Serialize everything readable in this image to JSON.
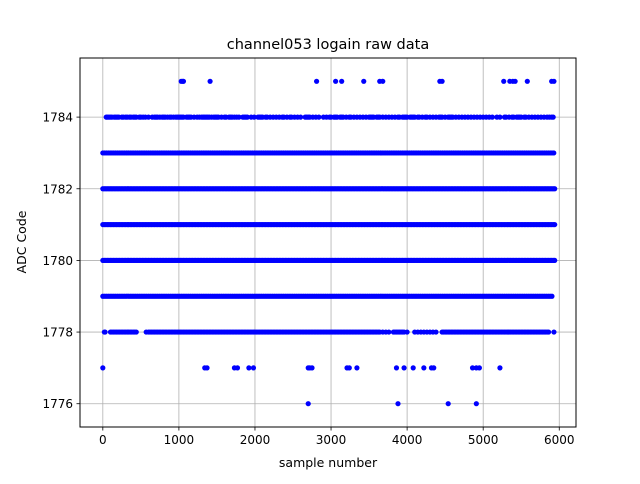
{
  "chart_data": {
    "type": "scatter",
    "title": "channel053 logain raw data",
    "xlabel": "sample number",
    "ylabel": "ADC Code",
    "xlim": [
      -300,
      6220
    ],
    "ylim": [
      1775.35,
      1785.65
    ],
    "xticks": [
      0,
      1000,
      2000,
      3000,
      4000,
      5000,
      6000
    ],
    "xtick_labels": [
      "0",
      "1000",
      "2000",
      "3000",
      "4000",
      "5000",
      "6000"
    ],
    "yticks": [
      1776,
      1778,
      1780,
      1782,
      1784
    ],
    "ytick_labels": [
      "1776",
      "1778",
      "1780",
      "1782",
      "1784"
    ],
    "grid": true,
    "marker_color": "#0000ff",
    "series": [
      {
        "values": [
          {
            "y": 1779,
            "x_from": 0,
            "x_to": 5920,
            "step": 24
          },
          {
            "y": 1780,
            "x_from": 0,
            "x_to": 5940,
            "step": 20
          },
          {
            "y": 1781,
            "x_from": 0,
            "x_to": 5940,
            "step": 20
          },
          {
            "y": 1782,
            "x_from": 0,
            "x_to": 5940,
            "step": 20
          },
          {
            "y": 1783,
            "x_from": 0,
            "x_to": 5940,
            "step": 24
          },
          {
            "y": 1784,
            "x": [
              45,
              60,
              80,
              100,
              120,
              150,
              170,
              190,
              210,
              250,
              270,
              300,
              320,
              350,
              370,
              400,
              420,
              440,
              480,
              500,
              530,
              560,
              600,
              650,
              680,
              700,
              720,
              750,
              780,
              800,
              820,
              850,
              880,
              900,
              930,
              960,
              980,
              1000,
              1020,
              1040,
              1060,
              1100,
              1120,
              1140,
              1160,
              1200,
              1240,
              1270,
              1300,
              1320,
              1340,
              1360,
              1380,
              1400,
              1430,
              1460,
              1480,
              1500,
              1520,
              1560,
              1600,
              1620,
              1660,
              1680,
              1700,
              1730,
              1760,
              1790,
              1840,
              1860,
              1880,
              1900,
              1950,
              1990,
              2040,
              2060,
              2080,
              2100,
              2140,
              2160,
              2200,
              2240,
              2280,
              2320,
              2360,
              2380,
              2420,
              2460,
              2480,
              2520,
              2560,
              2600,
              2660,
              2680,
              2700,
              2720,
              2760,
              2800,
              2840,
              2900,
              2940,
              2980,
              3000,
              3040,
              3060,
              3080,
              3120,
              3140,
              3160,
              3200,
              3240,
              3260,
              3300,
              3340,
              3380,
              3420,
              3460,
              3500,
              3520,
              3540,
              3560,
              3600,
              3620,
              3640,
              3680,
              3720,
              3760,
              3800,
              3840,
              3880,
              3900,
              3940,
              3960,
              3980,
              4000,
              4040,
              4060,
              4080,
              4100,
              4140,
              4160,
              4200,
              4240,
              4260,
              4300,
              4340,
              4380,
              4420,
              4440,
              4460,
              4500,
              4540,
              4560,
              4580,
              4600,
              4640,
              4680,
              4720,
              4760,
              4800,
              4840,
              4880,
              4920,
              4960,
              5000,
              5040,
              5080,
              5120,
              5180,
              5220,
              5280,
              5300,
              5340,
              5380,
              5400,
              5440,
              5460,
              5480,
              5500,
              5540,
              5560,
              5600,
              5640,
              5680,
              5720,
              5760,
              5800,
              5840,
              5870,
              5900,
              5920
            ]
          },
          {
            "y": 1778,
            "x": [
              20,
              30,
              100,
              120,
              140,
              160,
              180,
              200,
              220,
              240,
              260,
              280,
              300,
              320,
              340,
              360,
              380,
              400,
              420,
              440,
              570,
              600,
              620,
              640,
              660,
              680,
              700,
              720,
              740,
              760,
              780,
              800,
              820,
              840,
              860,
              880,
              900,
              920,
              940,
              960,
              980,
              1000,
              1020,
              1040,
              1060,
              1080,
              1100,
              1120,
              1140,
              1160,
              1180,
              1200,
              1220,
              1240,
              1260,
              1280,
              1300,
              1320,
              1340,
              1360,
              1380,
              1400,
              1420,
              1440,
              1460,
              1480,
              1500,
              1520,
              1540,
              1560,
              1580,
              1600,
              1620,
              1640,
              1660,
              1680,
              1700,
              1720,
              1740,
              1760,
              1780,
              1800,
              1820,
              1840,
              1860,
              1880,
              1900,
              1920,
              1940,
              1960,
              1980,
              2000,
              2020,
              2040,
              2060,
              2080,
              2100,
              2120,
              2140,
              2160,
              2180,
              2200,
              2220,
              2240,
              2260,
              2280,
              2300,
              2320,
              2340,
              2360,
              2380,
              2400,
              2420,
              2440,
              2460,
              2480,
              2500,
              2520,
              2540,
              2560,
              2580,
              2600,
              2620,
              2640,
              2660,
              2680,
              2700,
              2720,
              2740,
              2760,
              2780,
              2800,
              2820,
              2840,
              2860,
              2880,
              2900,
              2920,
              2940,
              2960,
              2980,
              3000,
              3020,
              3040,
              3060,
              3080,
              3100,
              3120,
              3140,
              3160,
              3180,
              3200,
              3220,
              3240,
              3260,
              3280,
              3300,
              3320,
              3340,
              3360,
              3380,
              3400,
              3420,
              3440,
              3460,
              3480,
              3500,
              3520,
              3540,
              3560,
              3580,
              3600,
              3620,
              3640,
              3680,
              3720,
              3760,
              3820,
              3840,
              3860,
              3880,
              3900,
              3920,
              3940,
              3960,
              4000,
              4100,
              4140,
              4180,
              4220,
              4260,
              4300,
              4340,
              4380,
              4460,
              4480,
              4500,
              4520,
              4540,
              4560,
              4580,
              4600,
              4620,
              4640,
              4660,
              4680,
              4700,
              4720,
              4740,
              4760,
              4780,
              4800,
              4820,
              4840,
              4860,
              4880,
              4900,
              4920,
              4940,
              4960,
              4980,
              5000,
              5020,
              5040,
              5060,
              5080,
              5100,
              5120,
              5140,
              5160,
              5180,
              5200,
              5220,
              5240,
              5260,
              5280,
              5300,
              5320,
              5340,
              5360,
              5380,
              5400,
              5420,
              5440,
              5460,
              5480,
              5500,
              5520,
              5540,
              5560,
              5580,
              5600,
              5620,
              5640,
              5660,
              5680,
              5700,
              5720,
              5740,
              5760,
              5780,
              5800,
              5820,
              5840,
              5860,
              5930
            ]
          },
          {
            "y": 1785,
            "x": [
              1030,
              1050,
              1060,
              1410,
              2810,
              3060,
              3140,
              3430,
              3640,
              3680,
              4430,
              4460,
              5270,
              5350,
              5390,
              5420,
              5580,
              5900,
              5930
            ]
          },
          {
            "y": 1777,
            "x": [
              0,
              1340,
              1370,
              1730,
              1770,
              1920,
              1980,
              2700,
              2720,
              2750,
              3210,
              3240,
              3340,
              3860,
              3960,
              4080,
              4220,
              4320,
              4350,
              4860,
              4910,
              4950,
              5220
            ]
          },
          {
            "y": 1776,
            "x": [
              2700,
              3880,
              4540,
              4910
            ]
          }
        ]
      }
    ]
  }
}
